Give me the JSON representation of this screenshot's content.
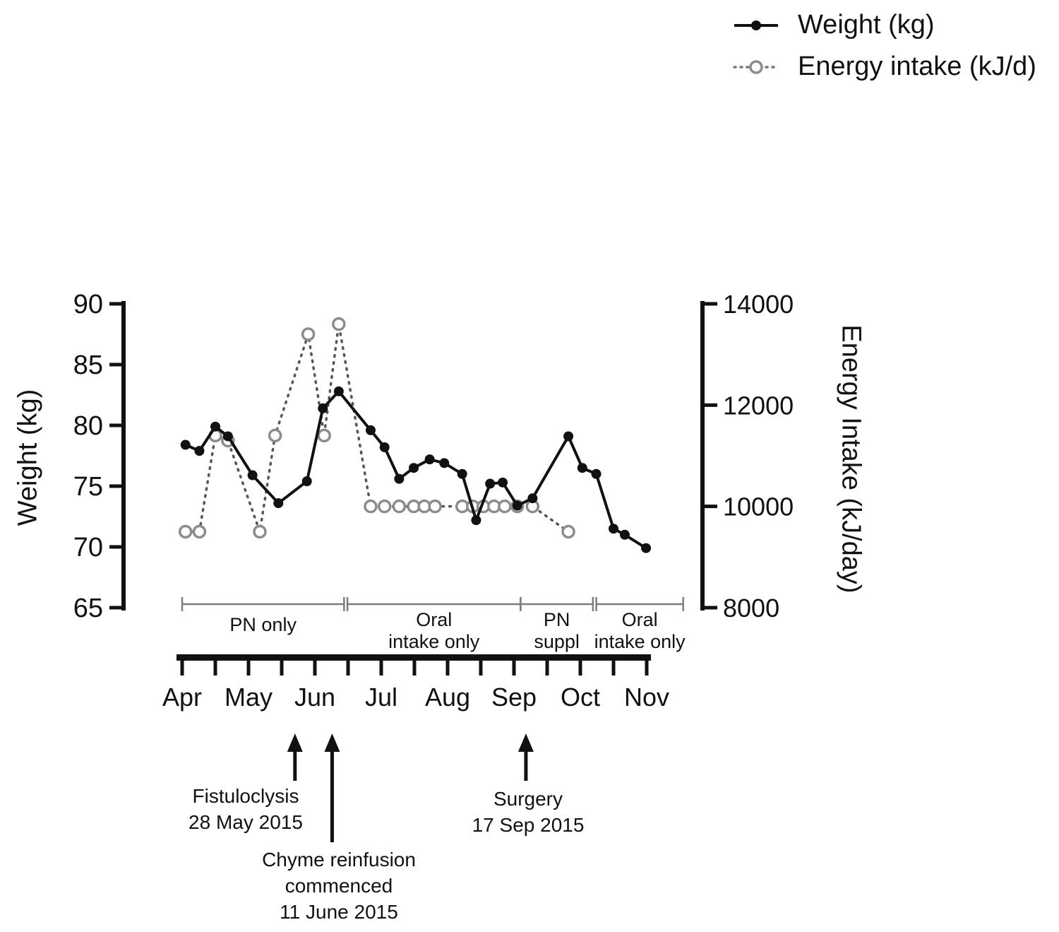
{
  "legend": {
    "items": [
      {
        "label": "Weight (kg)",
        "line": "solid",
        "marker": "filled-circle",
        "color": "#111111"
      },
      {
        "label": "Energy intake (kJ/d)",
        "line": "dotted",
        "marker": "open-circle",
        "color": "#8c8c8c"
      }
    ]
  },
  "chart_data": {
    "type": "line",
    "title": "",
    "x_axis": {
      "unit": "month",
      "tick_labels": [
        "Apr",
        "May",
        "Jun",
        "Jul",
        "Aug",
        "Sep",
        "Oct",
        "Nov"
      ]
    },
    "y_axis_left": {
      "label": "Weight (kg)",
      "ticks": [
        90,
        85,
        80,
        75,
        70,
        65
      ],
      "range": [
        65,
        90
      ]
    },
    "y_axis_right": {
      "label": "Energy Intake (kJ/day)",
      "ticks": [
        14000,
        12000,
        10000,
        8000
      ],
      "range": [
        8000,
        14000
      ]
    },
    "grid": false,
    "legend_position": "top-right",
    "series": [
      {
        "name": "Weight (kg)",
        "axis": "left",
        "style": "solid",
        "marker": "filled-circle",
        "color": "#111111",
        "points": [
          [
            0.05,
            78.4
          ],
          [
            0.26,
            77.9
          ],
          [
            0.5,
            79.9
          ],
          [
            0.69,
            79.1
          ],
          [
            1.06,
            75.9
          ],
          [
            1.45,
            73.6
          ],
          [
            1.88,
            75.4
          ],
          [
            2.12,
            81.4
          ],
          [
            2.36,
            82.8
          ],
          [
            2.84,
            79.6
          ],
          [
            3.05,
            78.2
          ],
          [
            3.27,
            75.6
          ],
          [
            3.49,
            76.5
          ],
          [
            3.73,
            77.2
          ],
          [
            3.95,
            76.9
          ],
          [
            4.22,
            76.0
          ],
          [
            4.43,
            72.2
          ],
          [
            4.64,
            75.2
          ],
          [
            4.83,
            75.3
          ],
          [
            5.05,
            73.4
          ],
          [
            5.28,
            74.0
          ],
          [
            5.82,
            79.1
          ],
          [
            6.03,
            76.5
          ],
          [
            6.24,
            76.0
          ],
          [
            6.5,
            71.5
          ],
          [
            6.67,
            71.0
          ],
          [
            6.99,
            69.9
          ]
        ]
      },
      {
        "name": "Energy intake (kJ/d)",
        "axis": "right",
        "style": "dotted",
        "marker": "open-circle",
        "color": "#8c8c8c",
        "points": [
          [
            0.05,
            9500
          ],
          [
            0.26,
            9500
          ],
          [
            0.5,
            11400
          ],
          [
            0.69,
            11300
          ],
          [
            1.17,
            9500
          ],
          [
            1.4,
            11400
          ],
          [
            1.9,
            13400
          ],
          [
            2.14,
            11400
          ],
          [
            2.36,
            13600
          ],
          [
            2.84,
            10000
          ],
          [
            3.05,
            10000
          ],
          [
            3.27,
            10000
          ],
          [
            3.49,
            10000
          ],
          [
            3.65,
            10000
          ],
          [
            3.81,
            10000
          ],
          [
            4.22,
            10000
          ],
          [
            4.38,
            10000
          ],
          [
            4.54,
            10000
          ],
          [
            4.7,
            10000
          ],
          [
            4.86,
            10000
          ],
          [
            5.05,
            10000
          ],
          [
            5.28,
            10000
          ],
          [
            5.82,
            9500
          ]
        ]
      }
    ],
    "periods": [
      {
        "lines": [
          "PN only"
        ],
        "start": 0.0,
        "end": 2.44
      },
      {
        "lines": [
          "Oral",
          "intake only"
        ],
        "start": 2.49,
        "end": 5.1
      },
      {
        "lines": [
          "PN",
          "suppl"
        ],
        "start": 5.1,
        "end": 6.19
      },
      {
        "lines": [
          "Oral",
          "intake only"
        ],
        "start": 6.24,
        "end": 7.55
      }
    ],
    "events": [
      {
        "lines": [
          "Fistuloclysis",
          "28 May 2015"
        ],
        "x": 1.7,
        "stem": "short"
      },
      {
        "lines": [
          "Chyme reinfusion",
          "commenced",
          "11 June 2015"
        ],
        "x": 2.26,
        "stem": "long"
      },
      {
        "lines": [
          "Surgery",
          "17 Sep 2015"
        ],
        "x": 5.18,
        "stem": "short"
      }
    ]
  }
}
